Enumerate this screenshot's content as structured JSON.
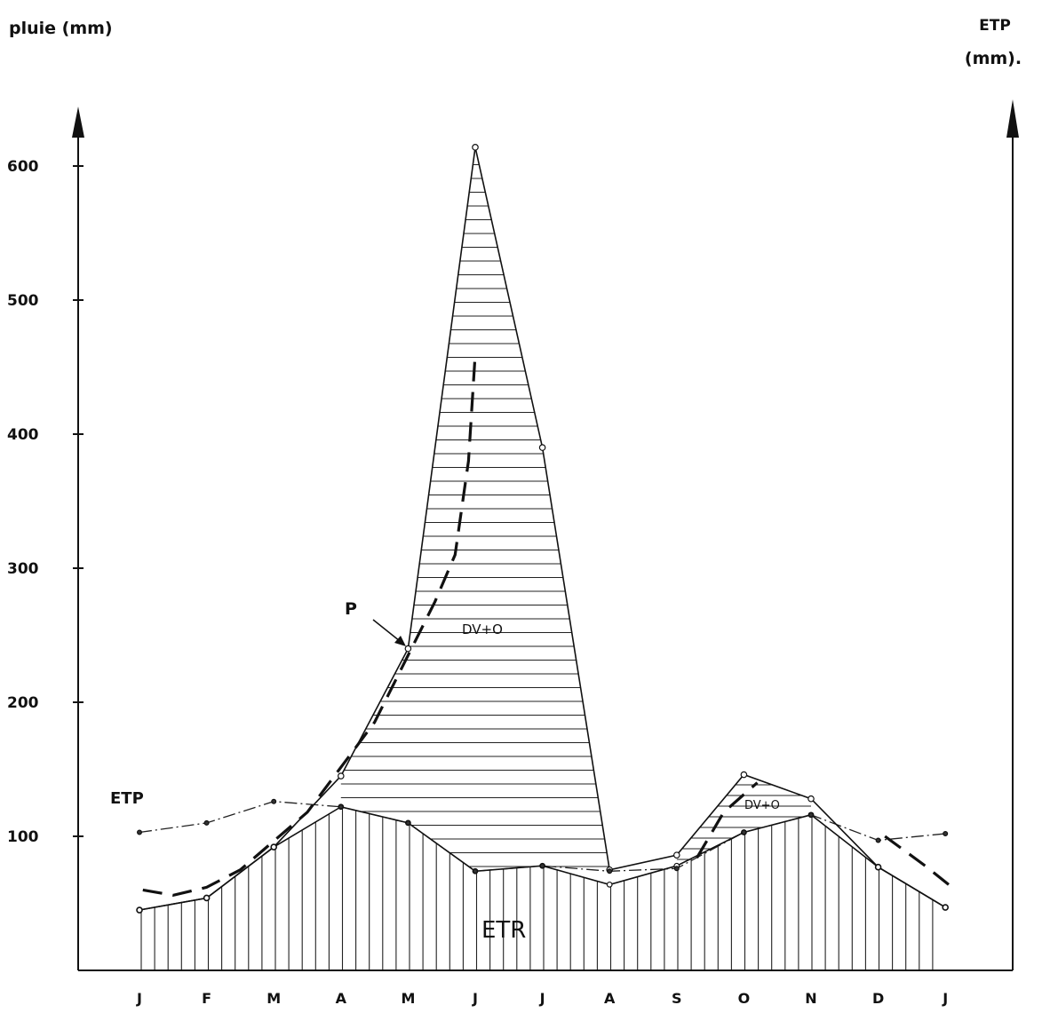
{
  "chart_data": {
    "type": "line",
    "left_axis_label": "pluie (mm)",
    "right_axis_label_line1": "ETP",
    "right_axis_label_line2": "(mm).",
    "categories": [
      "J",
      "F",
      "M",
      "A",
      "M",
      "J",
      "J",
      "A",
      "S",
      "O",
      "N",
      "D",
      "J"
    ],
    "y_ticks": [
      100,
      200,
      300,
      400,
      500,
      600
    ],
    "ylim": [
      0,
      640
    ],
    "series": [
      {
        "name": "P",
        "values": [
          45,
          54,
          92,
          145,
          240,
          614,
          390,
          75,
          86,
          146,
          128,
          77,
          47
        ]
      },
      {
        "name": "ETP",
        "values": [
          103,
          110,
          126,
          122,
          110,
          74,
          78,
          74,
          76,
          103,
          116,
          97,
          102
        ]
      },
      {
        "name": "ETR",
        "values": [
          45,
          54,
          92,
          122,
          110,
          74,
          78,
          64,
          78,
          103,
          116,
          77,
          47
        ]
      }
    ],
    "dashed_curve": [
      [
        0.05,
        60
      ],
      [
        0.5,
        56
      ],
      [
        1.0,
        62
      ],
      [
        1.5,
        75
      ],
      [
        2.5,
        118
      ],
      [
        3.5,
        185
      ],
      [
        4.4,
        275
      ],
      [
        4.7,
        310
      ],
      [
        4.9,
        380
      ],
      [
        5.0,
        460
      ]
    ],
    "dashed_curve_2": [
      [
        8.3,
        84
      ],
      [
        8.7,
        118
      ],
      [
        9.2,
        140
      ]
    ],
    "dashed_curve_3": [
      [
        11.1,
        100
      ],
      [
        11.7,
        78
      ],
      [
        12.1,
        62
      ]
    ],
    "annotations": {
      "p_label": "P",
      "etp_label": "ETP",
      "dv_o_main": "DV+O",
      "dv_o_second": "DV+O",
      "etr_label": "ETR"
    }
  }
}
